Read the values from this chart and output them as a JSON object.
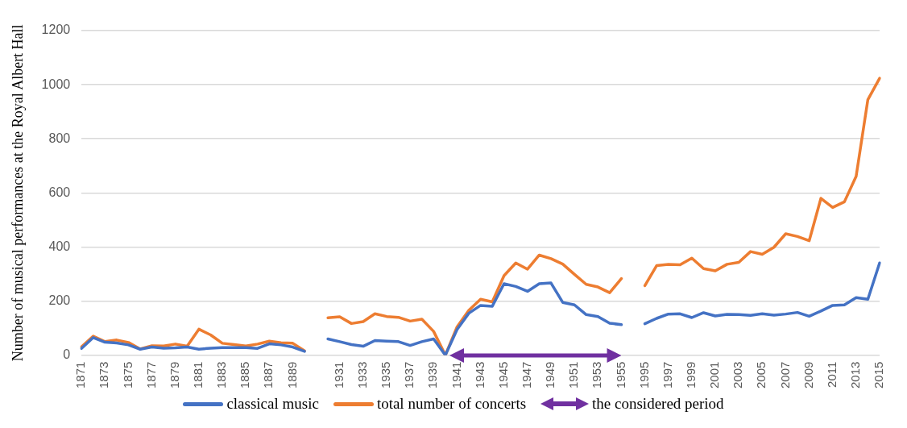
{
  "chart_data": {
    "type": "line",
    "ylabel": "Number of musical performances at the Royal Albert Hall",
    "categories": [
      "1871",
      null,
      "1873",
      null,
      "1875",
      null,
      "1877",
      null,
      "1879",
      null,
      "1881",
      null,
      "1883",
      null,
      "1885",
      null,
      "1887",
      null,
      "1889",
      null,
      null,
      null,
      "1931",
      null,
      "1933",
      null,
      "1935",
      null,
      "1937",
      null,
      "1939",
      null,
      "1941",
      null,
      "1943",
      null,
      "1945",
      null,
      "1947",
      null,
      "1949",
      null,
      "1951",
      null,
      "1953",
      null,
      "1955",
      null,
      "1995",
      null,
      "1997",
      null,
      "1999",
      null,
      "2001",
      null,
      "2003",
      null,
      "2005",
      null,
      "2007",
      null,
      "2009",
      null,
      "2011",
      null,
      "2013",
      null,
      "2015"
    ],
    "series": [
      {
        "name": "classical music",
        "color": "#4472c4",
        "values": [
          25,
          65,
          48,
          45,
          38,
          22,
          30,
          26,
          27,
          30,
          22,
          26,
          28,
          28,
          28,
          25,
          42,
          38,
          30,
          14,
          null,
          60,
          50,
          39,
          33,
          54,
          52,
          50,
          36,
          50,
          60,
          0,
          95,
          155,
          184,
          181,
          264,
          254,
          236,
          264,
          267,
          195,
          186,
          150,
          143,
          118,
          113,
          null,
          116,
          136,
          152,
          153,
          139,
          157,
          145,
          151,
          150,
          147,
          153,
          148,
          152,
          158,
          144,
          163,
          184,
          186,
          213,
          207,
          341
        ]
      },
      {
        "name": "total number of concerts",
        "color": "#ed7d31",
        "values": [
          31,
          70,
          50,
          56,
          47,
          23,
          35,
          34,
          41,
          33,
          96,
          75,
          44,
          39,
          34,
          41,
          52,
          46,
          44,
          16,
          null,
          138,
          142,
          117,
          124,
          153,
          143,
          140,
          126,
          133,
          88,
          0,
          105,
          166,
          207,
          197,
          294,
          341,
          318,
          370,
          357,
          337,
          299,
          262,
          252,
          231,
          283,
          null,
          257,
          331,
          336,
          334,
          359,
          320,
          312,
          336,
          343,
          383,
          373,
          399,
          449,
          439,
          423,
          580,
          546,
          567,
          661,
          945,
          1024
        ]
      }
    ],
    "annotations": [
      "the considered period"
    ],
    "ylim": [
      0,
      1200
    ],
    "yticks": [
      0,
      200,
      400,
      600,
      800,
      1000,
      1200
    ],
    "grid": "y",
    "legend": "bottom",
    "marker": "none",
    "line_style": "solid"
  }
}
